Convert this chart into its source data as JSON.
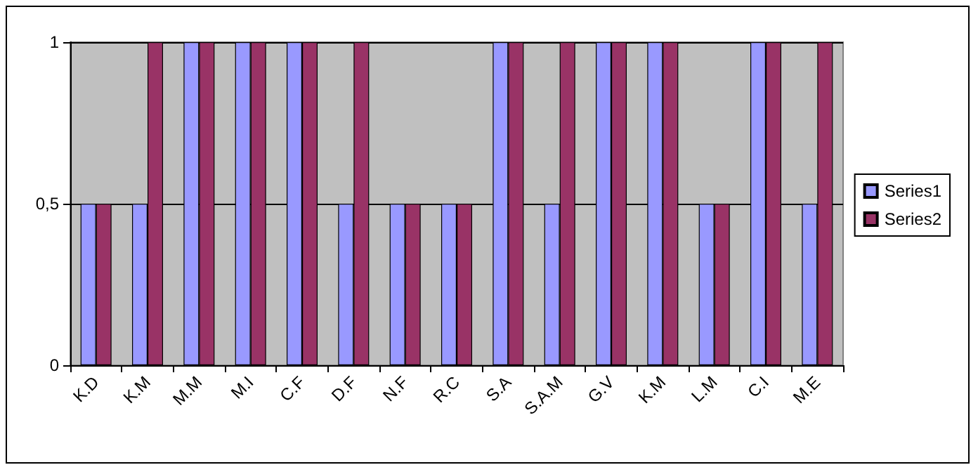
{
  "chart_data": {
    "type": "bar",
    "categories": [
      "K.D",
      "K.M",
      "M.M",
      "M.I",
      "C.F",
      "D.F",
      "N.F",
      "R.C",
      "S.A",
      "S.A.M",
      "G.V",
      "K.M",
      "L.M",
      "C.I",
      "M.E"
    ],
    "series": [
      {
        "name": "Series1",
        "color": "#9999ff",
        "values": [
          0.5,
          0.5,
          1,
          1,
          1,
          0.5,
          0.5,
          0.5,
          1,
          0.5,
          1,
          1,
          0.5,
          1,
          0.5
        ]
      },
      {
        "name": "Series2",
        "color": "#993366",
        "values": [
          0.5,
          1,
          1,
          1,
          1,
          1,
          0.5,
          0.5,
          1,
          1,
          1,
          1,
          0.5,
          1,
          1
        ]
      }
    ],
    "ylim": [
      0,
      1
    ],
    "yticks": [
      0,
      {
        "value": 0.5,
        "label": "0,5"
      },
      1
    ],
    "grid": "y",
    "legend": "right"
  }
}
